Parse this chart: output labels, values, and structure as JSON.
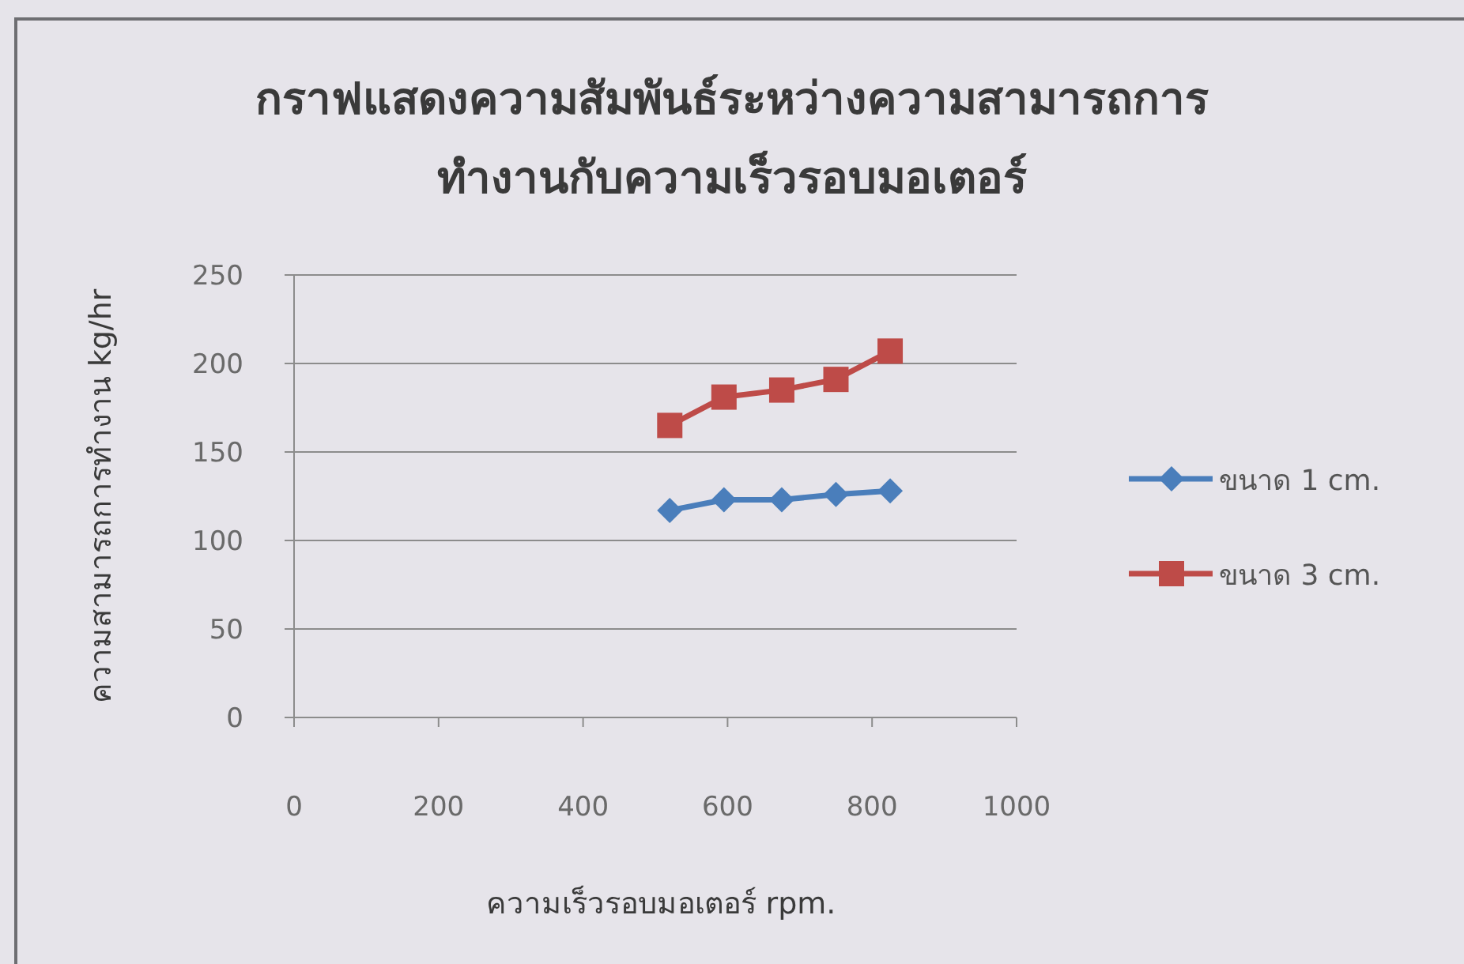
{
  "chart_data": {
    "type": "line",
    "title": "กราฟแสดงความสัมพันธ์ระหว่างความสามารถการ\nทำงานกับความเร็วรอบมอเตอร์",
    "xlabel": "ความเร็วรอบมอเตอร์ rpm.",
    "ylabel": "ความสามารถการทำงาน kg/hr",
    "x": [
      520,
      595,
      675,
      750,
      825
    ],
    "series": [
      {
        "name": "ขนาด 1 cm.",
        "color": "#4a7ebb",
        "marker": "diamond",
        "values": [
          117,
          123,
          123,
          126,
          128
        ]
      },
      {
        "name": "ขนาด 3 cm.",
        "color": "#be4b48",
        "marker": "square",
        "values": [
          165,
          181,
          185,
          191,
          207
        ]
      }
    ],
    "xlim": [
      0,
      1000
    ],
    "ylim": [
      0,
      250
    ],
    "xticks": [
      0,
      200,
      400,
      600,
      800,
      1000
    ],
    "yticks": [
      0,
      50,
      100,
      150,
      200,
      250
    ],
    "grid": "y",
    "legend": "right"
  }
}
